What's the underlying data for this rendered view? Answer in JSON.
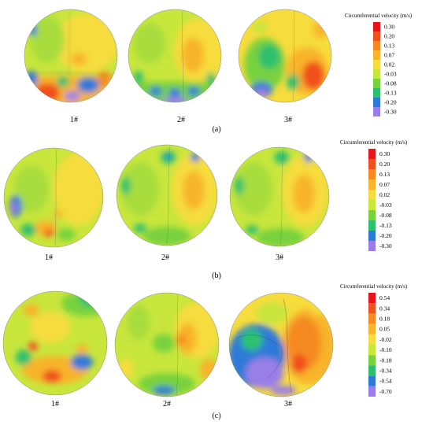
{
  "panels": [
    {
      "label": "(a)",
      "legend_title": "Circumferential velocity (m/s)",
      "scale": [
        "0.30",
        "0.20",
        "0.13",
        "0.07",
        "0.02",
        "-0.03",
        "-0.08",
        "-0.13",
        "-0.20",
        "-0.30"
      ],
      "scale_colors": [
        "#e8141c",
        "#f0501e",
        "#f58a22",
        "#f8b42a",
        "#f6dc3c",
        "#c8e63c",
        "#78d23c",
        "#2ec070",
        "#2e7ad8",
        "#9a7ee8"
      ],
      "plots": [
        {
          "caption": "1#",
          "pattern": "a1"
        },
        {
          "caption": "2#",
          "pattern": "a2"
        },
        {
          "caption": "3#",
          "pattern": "a3"
        }
      ]
    },
    {
      "label": "(b)",
      "legend_title": "Circumferential velocity (m/s)",
      "scale": [
        "0.30",
        "0.20",
        "0.13",
        "0.07",
        "0.02",
        "-0.03",
        "-0.08",
        "-0.13",
        "-0.20",
        "-0.30"
      ],
      "scale_colors": [
        "#e8141c",
        "#f0501e",
        "#f58a22",
        "#f8b42a",
        "#f6dc3c",
        "#c8e63c",
        "#78d23c",
        "#2ec070",
        "#2e7ad8",
        "#9a7ee8"
      ],
      "plots": [
        {
          "caption": "1#",
          "pattern": "b1"
        },
        {
          "caption": "2#",
          "pattern": "b2"
        },
        {
          "caption": "3#",
          "pattern": "b3"
        }
      ]
    },
    {
      "label": "(c)",
      "legend_title": "Circumferential velocity (m/s)",
      "scale": [
        "0.54",
        "0.34",
        "0.18",
        "0.05",
        "-0.02",
        "-0.10",
        "-0.18",
        "-0.34",
        "-0.54",
        "-0.70"
      ],
      "scale_colors": [
        "#e8141c",
        "#f0501e",
        "#f58a22",
        "#f8b42a",
        "#f6dc3c",
        "#c8e63c",
        "#78d23c",
        "#2ec070",
        "#2e7ad8",
        "#9a7ee8"
      ],
      "plots": [
        {
          "caption": "1#",
          "pattern": "c1"
        },
        {
          "caption": "2#",
          "pattern": "c2"
        },
        {
          "caption": "3#",
          "pattern": "c3"
        }
      ]
    }
  ]
}
